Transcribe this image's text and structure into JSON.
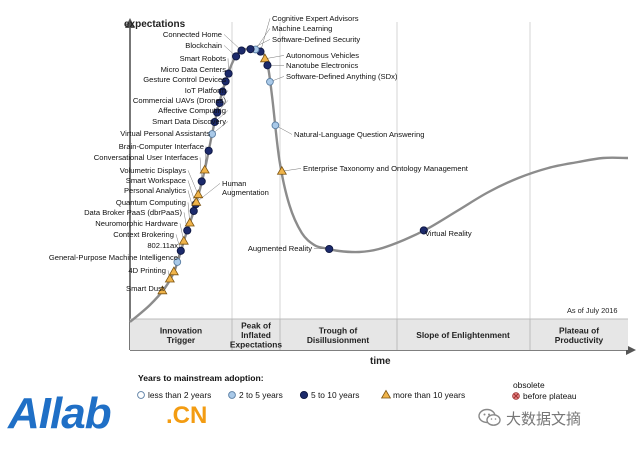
{
  "chart_data": {
    "type": "line",
    "y_axis_label": "expectations",
    "x_axis_label": "time",
    "as_of": "As of July 2016",
    "phases": [
      "Innovation Trigger",
      "Peak of Inflated Expectations",
      "Trough of Disillusionment",
      "Slope of Enlightenment",
      "Plateau of Productivity"
    ],
    "legend": {
      "title": "Years to mainstream adoption:",
      "entries": [
        {
          "key": "lt2",
          "label": "less than 2 years",
          "color": "#ffffff"
        },
        {
          "key": "2to5",
          "label": "2 to 5 years",
          "color": "#a9c9e8"
        },
        {
          "key": "5to10",
          "label": "5 to 10 years",
          "color": "#1c2a6b"
        },
        {
          "key": "gt10",
          "label": "more than 10 years",
          "color": "#f0b44a"
        },
        {
          "key": "obsolete",
          "label_line1": "obsolete",
          "label_line2": "before plateau",
          "color": "#e78080"
        }
      ]
    },
    "technologies": [
      {
        "name": "Cognitive Expert Advisors",
        "t": 0.262,
        "adoption": "5to10"
      },
      {
        "name": "Machine Learning",
        "t": 0.252,
        "adoption": "2to5"
      },
      {
        "name": "Software-Defined Security",
        "t": 0.242,
        "adoption": "5to10"
      },
      {
        "name": "Connected Home",
        "t": 0.224,
        "adoption": "5to10"
      },
      {
        "name": "Blockchain",
        "t": 0.213,
        "adoption": "5to10"
      },
      {
        "name": "Autonomous Vehicles",
        "t": 0.271,
        "adoption": "gt10"
      },
      {
        "name": "Nanotube Electronics",
        "t": 0.276,
        "adoption": "5to10"
      },
      {
        "name": "Software-Defined Anything (SDx)",
        "t": 0.281,
        "adoption": "2to5"
      },
      {
        "name": "Smart Robots",
        "t": 0.198,
        "adoption": "5to10"
      },
      {
        "name": "Micro Data Centers",
        "t": 0.192,
        "adoption": "5to10"
      },
      {
        "name": "Gesture Control Devices",
        "t": 0.186,
        "adoption": "5to10"
      },
      {
        "name": "IoT Platform",
        "t": 0.18,
        "adoption": "5to10"
      },
      {
        "name": "Commercial UAVs (Drones)",
        "t": 0.175,
        "adoption": "5to10"
      },
      {
        "name": "Affective Computing",
        "t": 0.17,
        "adoption": "5to10"
      },
      {
        "name": "Smart Data Discovery",
        "t": 0.165,
        "adoption": "2to5"
      },
      {
        "name": "Virtual Personal Assistants",
        "t": 0.158,
        "adoption": "5to10"
      },
      {
        "name": "Natural-Language Question Answering",
        "t": 0.292,
        "adoption": "2to5"
      },
      {
        "name": "Brain-Computer Interface",
        "t": 0.15,
        "adoption": "gt10"
      },
      {
        "name": "Conversational User Interfaces",
        "t": 0.144,
        "adoption": "5to10"
      },
      {
        "name": "Enterprise Taxonomy and Ontology Management",
        "t": 0.305,
        "adoption": "gt10"
      },
      {
        "name": "Volumetric Displays",
        "t": 0.137,
        "adoption": "gt10"
      },
      {
        "name": "Smart Workspace",
        "t": 0.132,
        "adoption": "5to10"
      },
      {
        "name": "Personal Analytics",
        "t": 0.128,
        "adoption": "5to10"
      },
      {
        "name": "Human Augmentation",
        "t": 0.133,
        "adoption": "gt10"
      },
      {
        "name": "Quantum Computing",
        "t": 0.12,
        "adoption": "gt10"
      },
      {
        "name": "Data Broker PaaS (dbrPaaS)",
        "t": 0.115,
        "adoption": "5to10"
      },
      {
        "name": "Neuromorphic Hardware",
        "t": 0.108,
        "adoption": "gt10"
      },
      {
        "name": "Context Brokering",
        "t": 0.102,
        "adoption": "5to10"
      },
      {
        "name": "802.11ax",
        "t": 0.095,
        "adoption": "2to5"
      },
      {
        "name": "General-Purpose Machine Intelligence",
        "t": 0.088,
        "adoption": "gt10"
      },
      {
        "name": "4D Printing",
        "t": 0.08,
        "adoption": "gt10"
      },
      {
        "name": "Smart Dust",
        "t": 0.065,
        "adoption": "gt10"
      },
      {
        "name": "Augmented Reality",
        "t": 0.4,
        "adoption": "5to10"
      },
      {
        "name": "Virtual Reality",
        "t": 0.59,
        "adoption": "5to10"
      }
    ]
  },
  "branding": {
    "logo_main": "AIlab",
    "logo_suffix": ".CN",
    "wechat_text": "大数据文摘"
  }
}
